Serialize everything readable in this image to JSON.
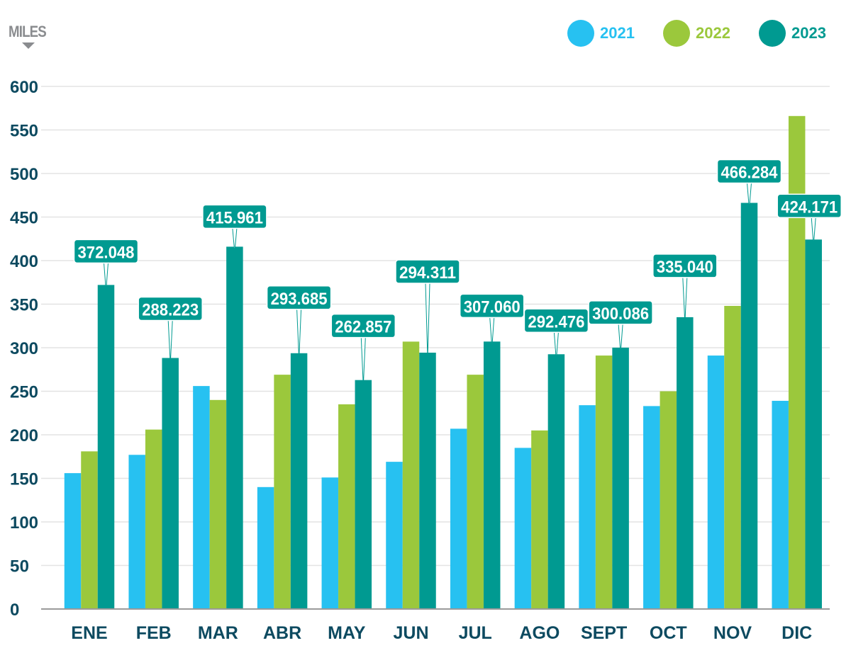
{
  "chart_data": {
    "type": "bar",
    "title": "",
    "xlabel": "",
    "ylabel": "MILES",
    "ylim": [
      0,
      600
    ],
    "yticks": [
      0,
      50,
      100,
      150,
      200,
      250,
      300,
      350,
      400,
      450,
      500,
      550,
      600
    ],
    "grid": true,
    "legend_position": "top-right",
    "categories": [
      "ENE",
      "FEB",
      "MAR",
      "ABR",
      "MAY",
      "JUN",
      "JUL",
      "AGO",
      "SEPT",
      "OCT",
      "NOV",
      "DIC"
    ],
    "series": [
      {
        "name": "2021",
        "color": "#27c1f1",
        "values": [
          156,
          177,
          256,
          140,
          151,
          169,
          207,
          185,
          234,
          233,
          291,
          239
        ]
      },
      {
        "name": "2022",
        "color": "#9bc83c",
        "values": [
          181,
          206,
          240,
          269,
          235,
          307,
          269,
          205,
          291,
          250,
          348,
          566
        ]
      },
      {
        "name": "2023",
        "color": "#009a91",
        "values": [
          372.048,
          288.223,
          415.961,
          293.685,
          262.857,
          294.311,
          307.06,
          292.476,
          300.086,
          335.04,
          466.284,
          424.171
        ]
      }
    ],
    "annotations": [
      "372.048",
      "288.223",
      "415.961",
      "293.685",
      "262.857",
      "294.311",
      "307.060",
      "292.476",
      "300.086",
      "335.040",
      "466.284",
      "424.171"
    ]
  }
}
